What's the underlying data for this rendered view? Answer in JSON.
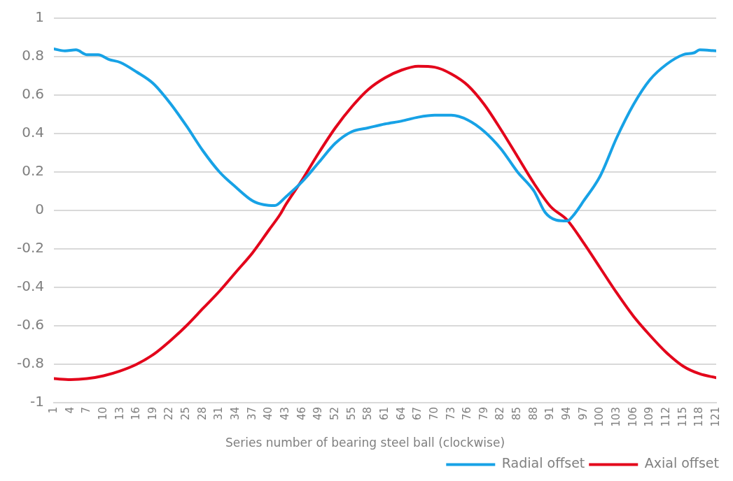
{
  "chart_data": {
    "type": "line",
    "xlabel": "Series number of bearing steel ball (clockwise)",
    "xlim": [
      1,
      121
    ],
    "xticks": [
      1,
      4,
      7,
      10,
      13,
      16,
      19,
      22,
      25,
      28,
      31,
      34,
      37,
      40,
      43,
      46,
      49,
      52,
      55,
      58,
      61,
      64,
      67,
      70,
      73,
      76,
      79,
      82,
      85,
      88,
      91,
      94,
      97,
      100,
      103,
      106,
      109,
      112,
      115,
      118,
      121
    ],
    "ylim": [
      -1,
      1
    ],
    "yticks": [
      -1,
      -0.8,
      -0.6,
      -0.4,
      -0.2,
      0,
      0.2,
      0.4,
      0.6,
      0.8,
      1
    ],
    "grid": "y",
    "legend": "bottom right",
    "marker": "none",
    "line_style": "solid",
    "series": [
      {
        "name": "Radial offset",
        "color": "#17a2e6",
        "x": [
          1,
          3,
          5,
          7,
          9,
          11,
          13,
          16,
          19,
          22,
          25,
          28,
          31,
          34,
          37,
          39,
          41,
          43,
          46,
          49,
          52,
          55,
          58,
          61,
          64,
          67,
          70,
          73,
          76,
          79,
          82,
          85,
          88,
          90,
          92,
          94,
          95,
          97,
          100,
          103,
          106,
          109,
          112,
          115,
          117,
          118,
          121
        ],
        "values": [
          0.84,
          0.83,
          0.835,
          0.81,
          0.81,
          0.785,
          0.77,
          0.72,
          0.66,
          0.56,
          0.44,
          0.31,
          0.2,
          0.12,
          0.05,
          0.03,
          0.025,
          0.07,
          0.15,
          0.25,
          0.35,
          0.41,
          0.43,
          0.45,
          0.465,
          0.485,
          0.495,
          0.495,
          0.47,
          0.41,
          0.32,
          0.2,
          0.1,
          -0.01,
          -0.05,
          -0.055,
          -0.03,
          0.05,
          0.18,
          0.38,
          0.55,
          0.68,
          0.76,
          0.81,
          0.82,
          0.835,
          0.83
        ]
      },
      {
        "name": "Axial offset",
        "color": "#e3051b",
        "x": [
          1,
          4,
          7,
          10,
          13,
          16,
          19,
          22,
          25,
          28,
          31,
          34,
          37,
          40,
          42,
          43,
          46,
          49,
          52,
          55,
          58,
          61,
          64,
          67,
          70,
          73,
          76,
          79,
          82,
          85,
          88,
          91,
          94,
          97,
          100,
          103,
          106,
          109,
          112,
          115,
          118,
          121
        ],
        "values": [
          -0.875,
          -0.88,
          -0.875,
          -0.86,
          -0.835,
          -0.8,
          -0.75,
          -0.68,
          -0.6,
          -0.51,
          -0.42,
          -0.32,
          -0.22,
          -0.1,
          -0.02,
          0.03,
          0.16,
          0.3,
          0.43,
          0.54,
          0.63,
          0.69,
          0.73,
          0.75,
          0.745,
          0.71,
          0.65,
          0.55,
          0.42,
          0.28,
          0.14,
          0.02,
          -0.05,
          -0.17,
          -0.3,
          -0.43,
          -0.55,
          -0.65,
          -0.74,
          -0.81,
          -0.85,
          -0.87
        ]
      }
    ]
  }
}
